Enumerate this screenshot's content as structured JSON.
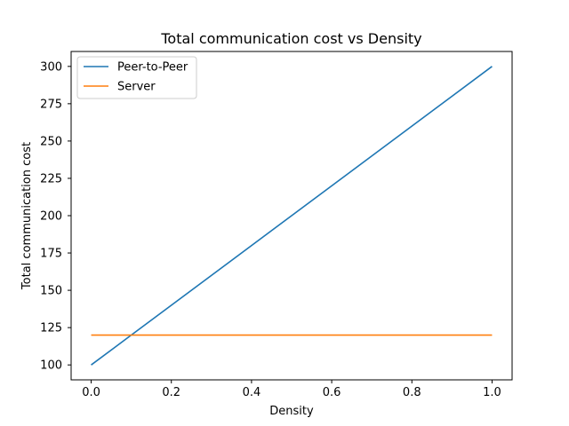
{
  "chart_data": {
    "type": "line",
    "title": "Total communication cost vs Density",
    "xlabel": "Density",
    "ylabel": "Total communication cost",
    "xlim": [
      -0.05,
      1.05
    ],
    "ylim": [
      90,
      310
    ],
    "xticks": [
      0.0,
      0.2,
      0.4,
      0.6,
      0.8,
      1.0
    ],
    "xtick_labels": [
      "0.0",
      "0.2",
      "0.4",
      "0.6",
      "0.8",
      "1.0"
    ],
    "yticks": [
      100,
      125,
      150,
      175,
      200,
      225,
      250,
      275,
      300
    ],
    "ytick_labels": [
      "100",
      "125",
      "150",
      "175",
      "200",
      "225",
      "250",
      "275",
      "300"
    ],
    "grid": false,
    "legend_position": "top-left",
    "series": [
      {
        "name": "Peer-to-Peer",
        "color": "#1f77b4",
        "x": [
          0.0,
          1.0
        ],
        "y": [
          100,
          300
        ]
      },
      {
        "name": "Server",
        "color": "#ff7f0e",
        "x": [
          0.0,
          1.0
        ],
        "y": [
          120,
          120
        ]
      }
    ]
  }
}
